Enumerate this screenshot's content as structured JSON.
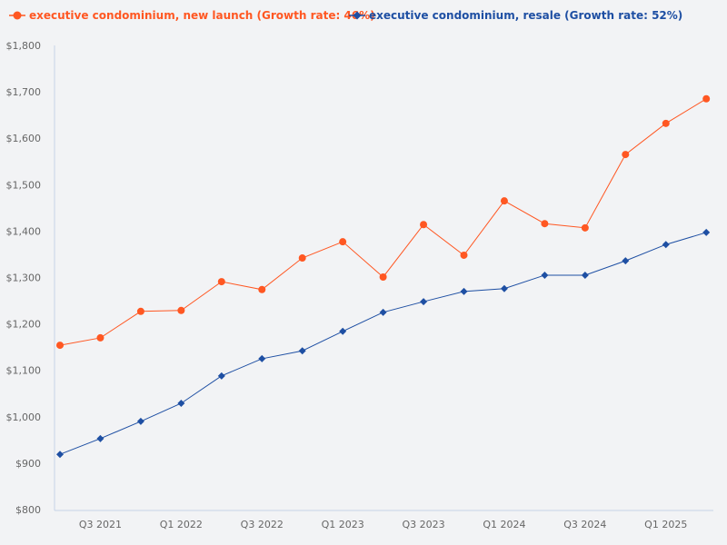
{
  "chart_data": {
    "type": "line",
    "title": "",
    "xlabel": "",
    "ylabel": "",
    "ylim": [
      800,
      1800
    ],
    "yticks": [
      "$800",
      "$900",
      "$1,000",
      "$1,100",
      "$1,200",
      "$1,300",
      "$1,400",
      "$1,500",
      "$1,600",
      "$1,700",
      "$1,800"
    ],
    "ytick_values": [
      800,
      900,
      1000,
      1100,
      1200,
      1300,
      1400,
      1500,
      1600,
      1700,
      1800
    ],
    "categories": [
      "Q2 2021",
      "Q3 2021",
      "Q4 2021",
      "Q1 2022",
      "Q2 2022",
      "Q3 2022",
      "Q4 2022",
      "Q1 2023",
      "Q2 2023",
      "Q3 2023",
      "Q4 2023",
      "Q1 2024",
      "Q2 2024",
      "Q3 2024",
      "Q4 2024",
      "Q1 2025",
      "Q2 2025"
    ],
    "xtick_labels": [
      "Q3 2021",
      "Q1 2022",
      "Q3 2022",
      "Q1 2023",
      "Q3 2023",
      "Q1 2024",
      "Q3 2024",
      "Q1 2025"
    ],
    "grid": false,
    "legend_position": "top-left",
    "series": [
      {
        "name": "executive condominium, new launch (Growth rate: 46%)",
        "color": "#ff5722",
        "marker": "circle",
        "values": [
          1154,
          1170,
          1227,
          1229,
          1291,
          1274,
          1342,
          1377,
          1301,
          1414,
          1348,
          1465,
          1416,
          1407,
          1565,
          1632,
          1685
        ]
      },
      {
        "name": "executive condominium, resale (Growth rate: 52%)",
        "color": "#1e4fa3",
        "marker": "diamond",
        "values": [
          919,
          953,
          990,
          1029,
          1088,
          1125,
          1142,
          1184,
          1225,
          1248,
          1270,
          1276,
          1305,
          1305,
          1336,
          1371,
          1397
        ]
      }
    ]
  }
}
